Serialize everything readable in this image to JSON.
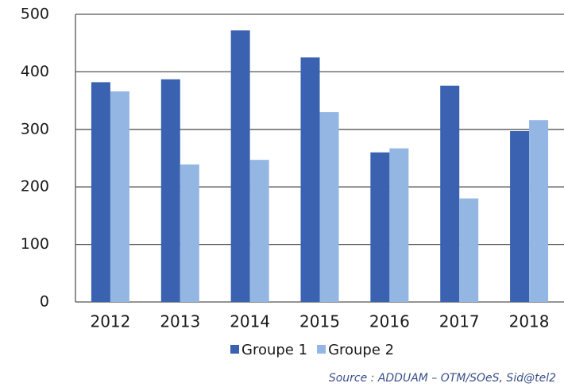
{
  "chart_data": {
    "type": "bar",
    "categories": [
      "2012",
      "2013",
      "2014",
      "2015",
      "2016",
      "2017",
      "2018"
    ],
    "series": [
      {
        "name": "Groupe 1",
        "color": "#3a62b0",
        "values": [
          382,
          387,
          472,
          425,
          260,
          376,
          297
        ]
      },
      {
        "name": "Groupe 2",
        "color": "#93b6e3",
        "values": [
          366,
          239,
          247,
          330,
          267,
          180,
          316
        ]
      }
    ],
    "ylim": [
      0,
      500
    ],
    "yticks": [
      0,
      100,
      200,
      300,
      400,
      500
    ],
    "grid": true,
    "legend": "bottom",
    "source": "Source : ADDUAM – OTM/SOeS, Sid@tel2"
  }
}
